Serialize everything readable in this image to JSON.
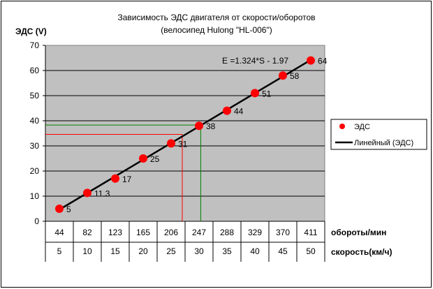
{
  "chart_data": {
    "type": "scatter",
    "title": "Зависимость ЭДС двигателя от скорости/оборотов",
    "subtitle": "(велосипед Hulong \"HL-006\")",
    "ylabel": "ЭДС (V)",
    "ylim": [
      0,
      70
    ],
    "ytick_step": 10,
    "x_rows": [
      {
        "label": "обороты/мин",
        "values": [
          "44",
          "82",
          "123",
          "165",
          "206",
          "247",
          "288",
          "329",
          "370",
          "411"
        ]
      },
      {
        "label": "скорость(км/ч)",
        "values": [
          "5",
          "10",
          "15",
          "20",
          "25",
          "30",
          "35",
          "40",
          "45",
          "50"
        ]
      }
    ],
    "series": [
      {
        "name": "ЭДС",
        "type": "scatter",
        "color": "#ff0000",
        "x": [
          5,
          10,
          15,
          20,
          25,
          30,
          35,
          40,
          45,
          50
        ],
        "y": [
          5,
          11.3,
          17,
          25,
          31,
          38,
          44,
          51,
          58,
          64
        ],
        "labels": [
          "5",
          "11.3",
          "17",
          "25",
          "31",
          "38",
          "44",
          "51",
          "58",
          "64"
        ]
      },
      {
        "name": "Линейный (ЭДС)",
        "type": "trendline",
        "color": "#000000",
        "equation": "E =1.324*S - 1.97"
      }
    ],
    "guide_lines": [
      {
        "color": "#ff0000",
        "x": 27,
        "y": 34.6
      },
      {
        "color": "#008000",
        "x": 30.3,
        "y": 38.3
      }
    ],
    "grid": true,
    "legend_position": "right",
    "plot_background": "#c0c0c0"
  }
}
